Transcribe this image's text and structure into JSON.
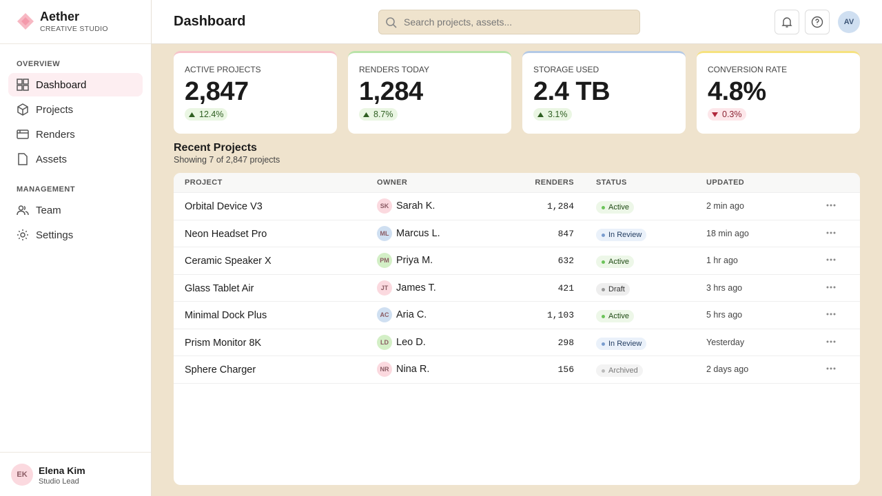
{
  "brand": {
    "name": "Aether",
    "subtitle": "CREATIVE STUDIO"
  },
  "nav": [
    {
      "title": "OVERVIEW",
      "items": [
        "Dashboard",
        "Projects",
        "Renders",
        "Assets"
      ]
    },
    {
      "title": "MANAGEMENT",
      "items": [
        "Team",
        "Settings"
      ]
    }
  ],
  "user": {
    "initials": "EK",
    "name": "Elena Kim",
    "role": "Studio Lead"
  },
  "header": {
    "title": "Dashboard",
    "search_placeholder": "Search projects, assets...",
    "avatar": "AV"
  },
  "stats": [
    {
      "label": "ACTIVE PROJECTS",
      "value": "2,847",
      "change": "12.4%",
      "trend": "up",
      "accent": "#f7c1c9"
    },
    {
      "label": "RENDERS TODAY",
      "value": "1,284",
      "change": "8.7%",
      "trend": "up",
      "accent": "#b9e3a9"
    },
    {
      "label": "STORAGE USED",
      "value": "2.4 TB",
      "change": "3.1%",
      "trend": "up",
      "accent": "#b3c9e6"
    },
    {
      "label": "CONVERSION RATE",
      "value": "4.8%",
      "change": "0.3%",
      "trend": "down",
      "accent": "#f6e27f"
    }
  ],
  "recent": {
    "title": "Recent Projects",
    "subtitle": "Showing 7 of 2,847 projects"
  },
  "table": {
    "columns": [
      "PROJECT",
      "OWNER",
      "RENDERS",
      "STATUS",
      "UPDATED"
    ],
    "rows": [
      {
        "project": "Orbital Device V3",
        "initials": "SK",
        "owner": "Sarah K.",
        "renders": "1,284",
        "status": "Active",
        "tone": "green",
        "avatar_color": "#fbd9df",
        "updated": "2 min ago"
      },
      {
        "project": "Neon Headset Pro",
        "initials": "ML",
        "owner": "Marcus L.",
        "renders": "847",
        "status": "In Review",
        "tone": "blue",
        "avatar_color": "#cfdff1",
        "updated": "18 min ago"
      },
      {
        "project": "Ceramic Speaker X",
        "initials": "PM",
        "owner": "Priya M.",
        "renders": "632",
        "status": "Active",
        "tone": "green",
        "avatar_color": "#d3efc6",
        "updated": "1 hr ago"
      },
      {
        "project": "Glass Tablet Air",
        "initials": "JT",
        "owner": "James T.",
        "renders": "421",
        "status": "Draft",
        "tone": "gray",
        "avatar_color": "#fbd9df",
        "updated": "3 hrs ago"
      },
      {
        "project": "Minimal Dock Plus",
        "initials": "AC",
        "owner": "Aria C.",
        "renders": "1,103",
        "status": "Active",
        "tone": "green",
        "avatar_color": "#cfdff1",
        "updated": "5 hrs ago"
      },
      {
        "project": "Prism Monitor 8K",
        "initials": "LD",
        "owner": "Leo D.",
        "renders": "298",
        "status": "In Review",
        "tone": "blue",
        "avatar_color": "#d3efc6",
        "updated": "Yesterday"
      },
      {
        "project": "Sphere Charger",
        "initials": "NR",
        "owner": "Nina R.",
        "renders": "156",
        "status": "Archived",
        "tone": "muted",
        "avatar_color": "#fbd9df",
        "updated": "2 days ago"
      }
    ]
  }
}
